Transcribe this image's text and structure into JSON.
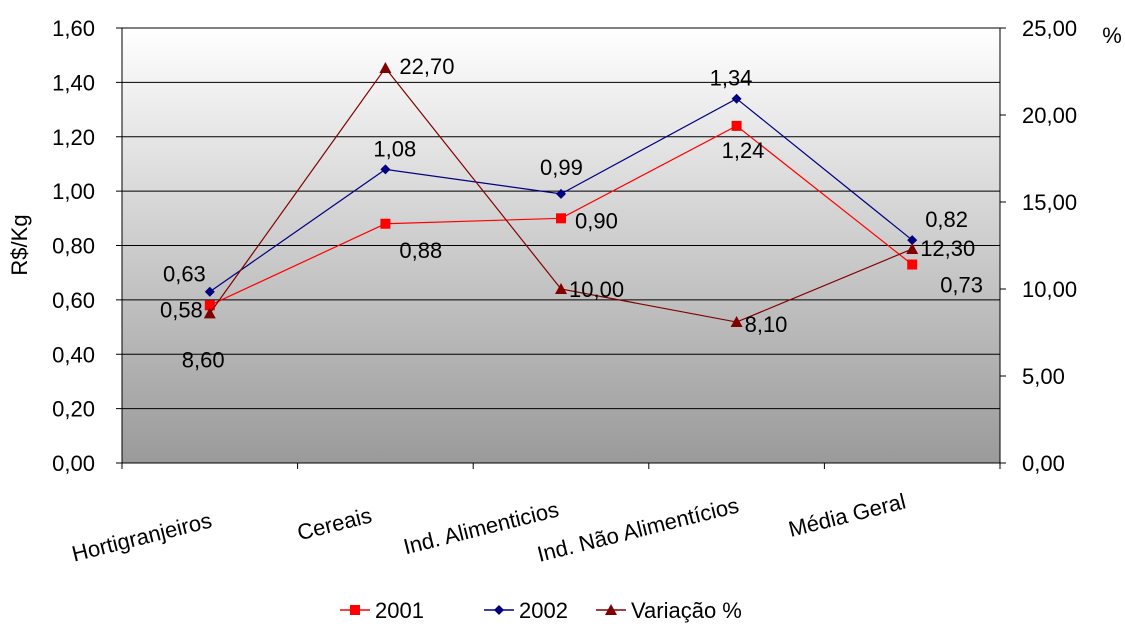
{
  "chart_data": {
    "type": "line",
    "categories": [
      "Hortigranjeiros",
      "Cereais",
      "Ind. Alimenticios",
      "Ind. Não Alimentícios",
      "Média Geral"
    ],
    "ylabel": "R$/Kg",
    "y2label": "%",
    "ylim": [
      0,
      1.6
    ],
    "y_ticks": [
      "0,00",
      "0,20",
      "0,40",
      "0,60",
      "0,80",
      "1,00",
      "1,20",
      "1,40",
      "1,60"
    ],
    "y2lim": [
      0,
      25
    ],
    "y2_ticks": [
      "0,00",
      "5,00",
      "10,00",
      "15,00",
      "20,00",
      "25,00"
    ],
    "grid": true,
    "legend_position": "bottom",
    "series": [
      {
        "name": "2001",
        "axis": "left",
        "color": "#ff0000",
        "marker": "square",
        "values": [
          0.58,
          0.88,
          0.9,
          1.24,
          0.73
        ],
        "labels": [
          "0,58",
          "0,88",
          "0,90",
          "1,24",
          "0,73"
        ]
      },
      {
        "name": "2002",
        "axis": "left",
        "color": "#000080",
        "marker": "diamond",
        "values": [
          0.63,
          1.08,
          0.99,
          1.34,
          0.82
        ],
        "labels": [
          "0,63",
          "1,08",
          "0,99",
          "1,34",
          "0,82"
        ]
      },
      {
        "name": "Variação %",
        "axis": "right",
        "color": "#800000",
        "marker": "triangle",
        "values": [
          8.6,
          22.7,
          10.0,
          8.1,
          12.3
        ],
        "labels": [
          "8,60",
          "22,70",
          "10,00",
          "8,10",
          "12,30"
        ]
      }
    ]
  }
}
